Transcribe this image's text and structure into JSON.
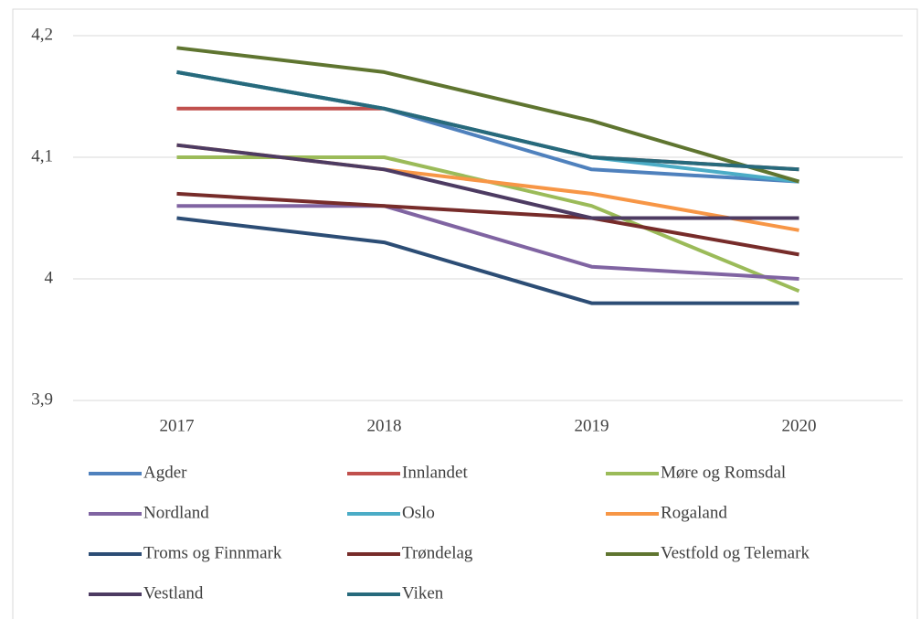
{
  "chart_data": {
    "type": "line",
    "categories": [
      "2017",
      "2018",
      "2019",
      "2020"
    ],
    "ylim": [
      3.9,
      4.2
    ],
    "yticks": [
      {
        "value": 3.9,
        "label": "3,9"
      },
      4,
      {
        "value": 4.1,
        "label": "4,1"
      },
      {
        "value": 4.2,
        "label": "4,2"
      }
    ],
    "grid": true,
    "legend": "bottom",
    "series": [
      {
        "name": "Agder",
        "color": "#4f81bd",
        "values": [
          4.17,
          4.14,
          4.09,
          4.08
        ]
      },
      {
        "name": "Innlandet",
        "color": "#c0504d",
        "values": [
          4.14,
          4.14,
          4.1,
          4.09
        ]
      },
      {
        "name": "Møre og Romsdal",
        "color": "#9bbb59",
        "values": [
          4.1,
          4.1,
          4.06,
          3.99
        ]
      },
      {
        "name": "Nordland",
        "color": "#8064a2",
        "values": [
          4.06,
          4.06,
          4.01,
          4.0
        ]
      },
      {
        "name": "Oslo",
        "color": "#4bacc6",
        "values": [
          4.17,
          4.14,
          4.1,
          4.08
        ]
      },
      {
        "name": "Rogaland",
        "color": "#f79646",
        "values": [
          4.11,
          4.09,
          4.07,
          4.04
        ]
      },
      {
        "name": "Troms og Finnmark",
        "color": "#2c4d75",
        "values": [
          4.05,
          4.03,
          3.98,
          3.98
        ]
      },
      {
        "name": "Trøndelag",
        "color": "#772c2a",
        "values": [
          4.07,
          4.06,
          4.05,
          4.02
        ]
      },
      {
        "name": "Vestfold og Telemark",
        "color": "#5f7530",
        "values": [
          4.19,
          4.17,
          4.13,
          4.08
        ]
      },
      {
        "name": "Vestland",
        "color": "#4d3b62",
        "values": [
          4.11,
          4.09,
          4.05,
          4.05
        ]
      },
      {
        "name": "Viken",
        "color": "#276a7c",
        "values": [
          4.17,
          4.14,
          4.1,
          4.09
        ]
      }
    ]
  }
}
